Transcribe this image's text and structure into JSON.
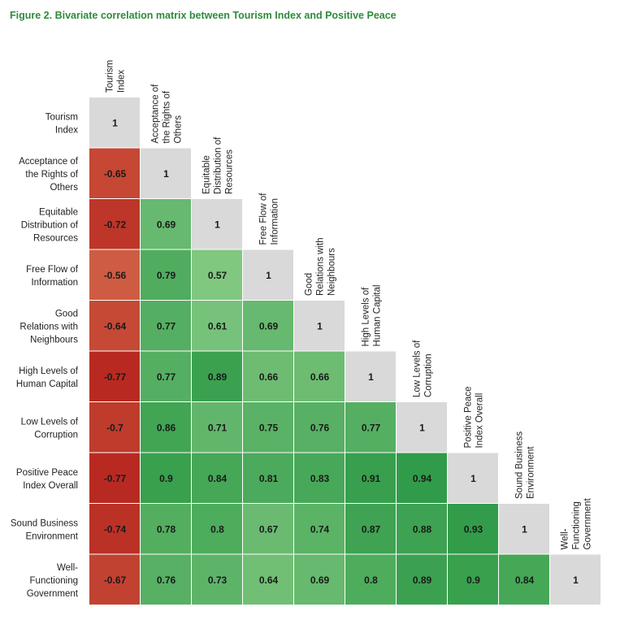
{
  "chart_data": {
    "type": "heatmap",
    "title": "Figure 2. Bivariate correlation matrix between Tourism Index and Positive Peace",
    "labels": [
      [
        "Tourism",
        "Index"
      ],
      [
        "Acceptance of",
        "the Rights of",
        "Others"
      ],
      [
        "Equitable",
        "Distribution of",
        "Resources"
      ],
      [
        "Free Flow of",
        "Information"
      ],
      [
        "Good",
        "Relations with",
        "Neighbours"
      ],
      [
        "High Levels of",
        "Human Capital"
      ],
      [
        "Low Levels of",
        "Corruption"
      ],
      [
        "Positive Peace",
        "Index Overall"
      ],
      [
        "Sound Business",
        "Environment"
      ],
      [
        "Well-",
        "Functioning",
        "Government"
      ]
    ],
    "matrix": [
      [
        "1"
      ],
      [
        "-0.65",
        "1"
      ],
      [
        "-0.72",
        "0.69",
        "1"
      ],
      [
        "-0.56",
        "0.79",
        "0.57",
        "1"
      ],
      [
        "-0.64",
        "0.77",
        "0.61",
        "0.69",
        "1"
      ],
      [
        "-0.77",
        "0.77",
        "0.89",
        "0.66",
        "0.66",
        "1"
      ],
      [
        "-0.7",
        "0.86",
        "0.71",
        "0.75",
        "0.76",
        "0.77",
        "1"
      ],
      [
        "-0.77",
        "0.9",
        "0.84",
        "0.81",
        "0.83",
        "0.91",
        "0.94",
        "1"
      ],
      [
        "-0.74",
        "0.78",
        "0.8",
        "0.67",
        "0.74",
        "0.87",
        "0.88",
        "0.93",
        "1"
      ],
      [
        "-0.67",
        "0.76",
        "0.73",
        "0.64",
        "0.69",
        "0.8",
        "0.89",
        "0.9",
        "0.84",
        "1"
      ]
    ],
    "colors": {
      "diagonal": "#d9d9d9",
      "negative": "#b5231c",
      "positive": "#2e9a47"
    }
  }
}
